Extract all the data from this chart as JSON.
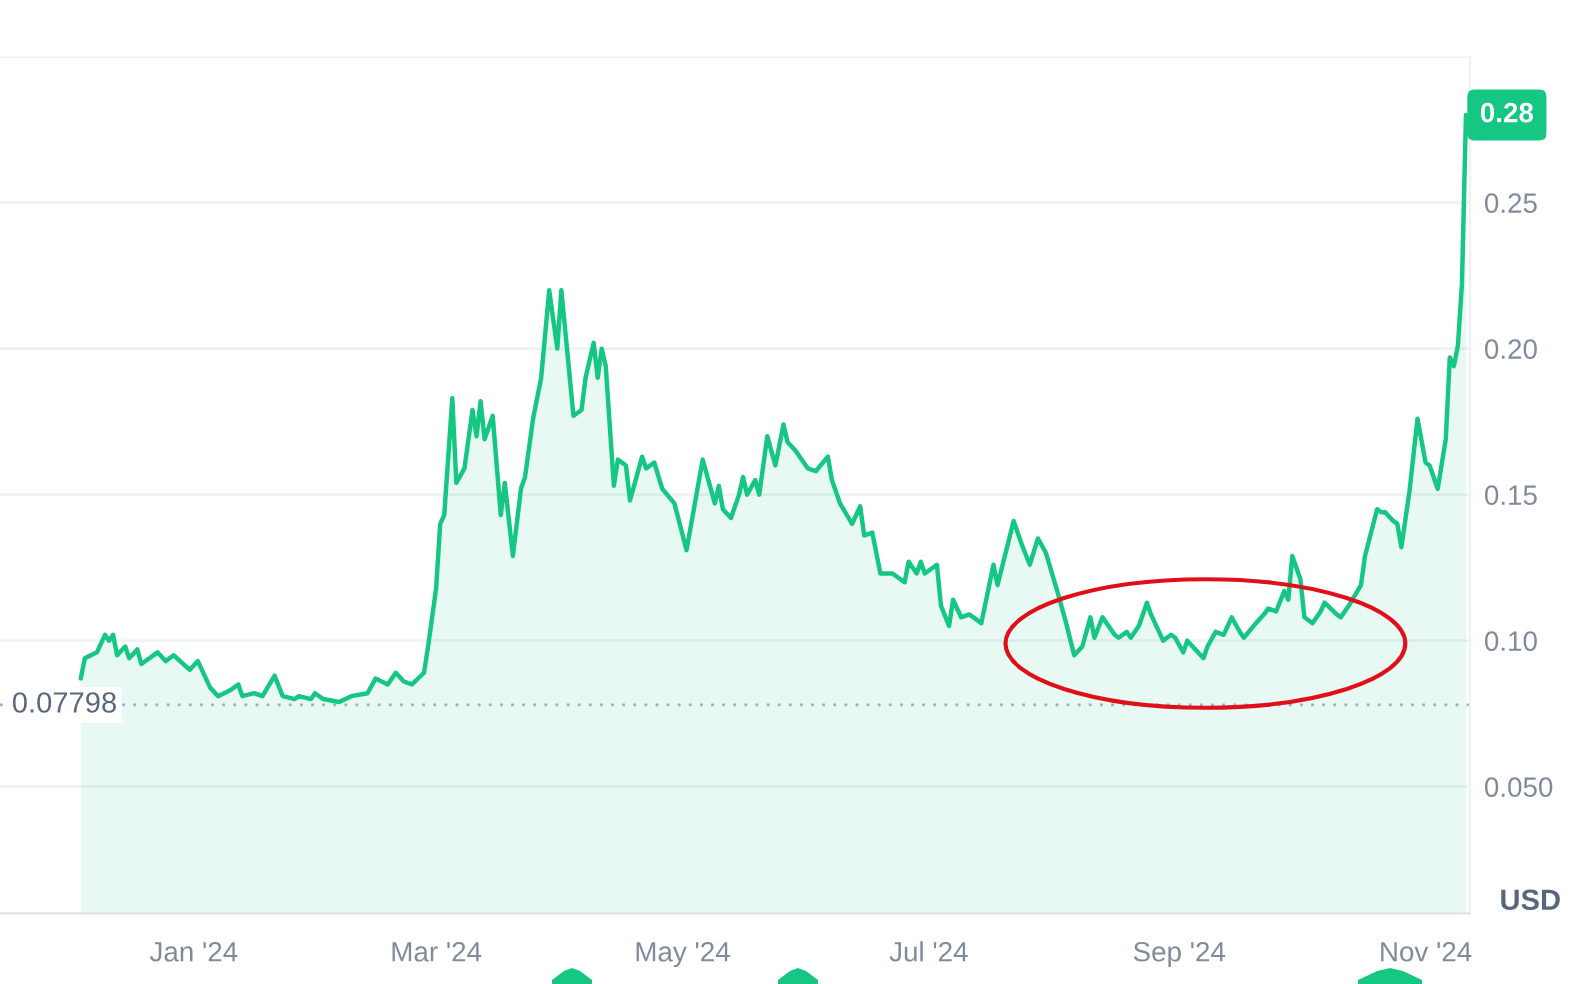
{
  "chart_data": {
    "type": "area",
    "x": [
      "2023-12-04",
      "2023-12-05",
      "2023-12-08",
      "2023-12-10",
      "2023-12-11",
      "2023-12-12",
      "2023-12-13",
      "2023-12-15",
      "2023-12-16",
      "2023-12-18",
      "2023-12-19",
      "2023-12-23",
      "2023-12-25",
      "2023-12-27",
      "2023-12-31",
      "2024-01-02",
      "2024-01-03",
      "2024-01-05",
      "2024-01-07",
      "2024-01-10",
      "2024-01-12",
      "2024-01-13",
      "2024-01-16",
      "2024-01-18",
      "2024-01-21",
      "2024-01-23",
      "2024-01-26",
      "2024-01-27",
      "2024-01-30",
      "2024-01-31",
      "2024-02-02",
      "2024-02-06",
      "2024-02-09",
      "2024-02-13",
      "2024-02-15",
      "2024-02-18",
      "2024-02-20",
      "2024-02-22",
      "2024-02-24",
      "2024-02-27",
      "2024-02-28",
      "2024-03-01",
      "2024-03-02",
      "2024-03-03",
      "2024-03-05",
      "2024-03-06",
      "2024-03-08",
      "2024-03-10",
      "2024-03-11",
      "2024-03-12",
      "2024-03-13",
      "2024-03-15",
      "2024-03-17",
      "2024-03-18",
      "2024-03-20",
      "2024-03-22",
      "2024-03-23",
      "2024-03-25",
      "2024-03-27",
      "2024-03-29",
      "2024-03-31",
      "2024-04-01",
      "2024-04-04",
      "2024-04-06",
      "2024-04-07",
      "2024-04-09",
      "2024-04-10",
      "2024-04-11",
      "2024-04-12",
      "2024-04-14",
      "2024-04-15",
      "2024-04-17",
      "2024-04-18",
      "2024-04-21",
      "2024-04-22",
      "2024-04-24",
      "2024-04-26",
      "2024-04-29",
      "2024-05-02",
      "2024-05-06",
      "2024-05-09",
      "2024-05-10",
      "2024-05-11",
      "2024-05-13",
      "2024-05-15",
      "2024-05-16",
      "2024-05-17",
      "2024-05-19",
      "2024-05-20",
      "2024-05-22",
      "2024-05-24",
      "2024-05-26",
      "2024-05-27",
      "2024-05-29",
      "2024-06-01",
      "2024-06-03",
      "2024-06-06",
      "2024-06-07",
      "2024-06-09",
      "2024-06-12",
      "2024-06-14",
      "2024-06-15",
      "2024-06-17",
      "2024-06-19",
      "2024-06-22",
      "2024-06-25",
      "2024-06-26",
      "2024-06-28",
      "2024-06-29",
      "2024-06-30",
      "2024-07-03",
      "2024-07-04",
      "2024-07-06",
      "2024-07-07",
      "2024-07-09",
      "2024-07-11",
      "2024-07-14",
      "2024-07-17",
      "2024-07-18",
      "2024-07-22",
      "2024-07-24",
      "2024-07-26",
      "2024-07-28",
      "2024-07-30",
      "2024-08-02",
      "2024-08-04",
      "2024-08-06",
      "2024-08-08",
      "2024-08-10",
      "2024-08-11",
      "2024-08-13",
      "2024-08-16",
      "2024-08-17",
      "2024-08-19",
      "2024-08-20",
      "2024-08-22",
      "2024-08-24",
      "2024-08-25",
      "2024-08-28",
      "2024-08-30",
      "2024-08-31",
      "2024-09-02",
      "2024-09-03",
      "2024-09-05",
      "2024-09-07",
      "2024-09-08",
      "2024-09-10",
      "2024-09-12",
      "2024-09-14",
      "2024-09-16",
      "2024-09-17",
      "2024-09-20",
      "2024-09-22",
      "2024-09-23",
      "2024-09-25",
      "2024-09-27",
      "2024-09-28",
      "2024-09-29",
      "2024-10-01",
      "2024-10-02",
      "2024-10-04",
      "2024-10-06",
      "2024-10-07",
      "2024-10-10",
      "2024-10-11",
      "2024-10-13",
      "2024-10-16",
      "2024-10-17",
      "2024-10-20",
      "2024-10-21",
      "2024-10-22",
      "2024-10-24",
      "2024-10-25",
      "2024-10-26",
      "2024-10-28",
      "2024-10-30",
      "2024-11-01",
      "2024-11-02",
      "2024-11-04",
      "2024-11-06",
      "2024-11-07",
      "2024-11-08",
      "2024-11-09",
      "2024-11-10",
      "2024-11-10T12:00",
      "2024-11-11"
    ],
    "series": [
      {
        "color": "#16c784",
        "values": [
          0.087,
          0.094,
          0.096,
          0.102,
          0.1,
          0.102,
          0.095,
          0.098,
          0.094,
          0.097,
          0.092,
          0.096,
          0.093,
          0.095,
          0.09,
          0.093,
          0.09,
          0.084,
          0.081,
          0.083,
          0.085,
          0.081,
          0.082,
          0.081,
          0.088,
          0.081,
          0.08,
          0.081,
          0.08,
          0.082,
          0.08,
          0.079,
          0.081,
          0.082,
          0.087,
          0.085,
          0.089,
          0.086,
          0.085,
          0.089,
          0.098,
          0.118,
          0.14,
          0.143,
          0.183,
          0.154,
          0.159,
          0.179,
          0.17,
          0.182,
          0.169,
          0.177,
          0.143,
          0.154,
          0.129,
          0.152,
          0.156,
          0.176,
          0.19,
          0.22,
          0.2,
          0.22,
          0.177,
          0.179,
          0.19,
          0.202,
          0.19,
          0.2,
          0.194,
          0.153,
          0.162,
          0.16,
          0.148,
          0.163,
          0.159,
          0.161,
          0.152,
          0.147,
          0.131,
          0.162,
          0.147,
          0.153,
          0.145,
          0.142,
          0.15,
          0.156,
          0.15,
          0.155,
          0.15,
          0.17,
          0.16,
          0.174,
          0.168,
          0.165,
          0.159,
          0.158,
          0.163,
          0.155,
          0.147,
          0.14,
          0.146,
          0.136,
          0.137,
          0.123,
          0.123,
          0.12,
          0.127,
          0.123,
          0.127,
          0.123,
          0.126,
          0.112,
          0.105,
          0.114,
          0.108,
          0.109,
          0.106,
          0.126,
          0.119,
          0.141,
          0.133,
          0.126,
          0.135,
          0.13,
          0.116,
          0.106,
          0.095,
          0.098,
          0.108,
          0.101,
          0.108,
          0.102,
          0.101,
          0.103,
          0.101,
          0.105,
          0.113,
          0.109,
          0.1,
          0.102,
          0.101,
          0.096,
          0.1,
          0.097,
          0.094,
          0.098,
          0.103,
          0.102,
          0.108,
          0.103,
          0.101,
          0.106,
          0.109,
          0.111,
          0.11,
          0.117,
          0.114,
          0.129,
          0.121,
          0.108,
          0.106,
          0.11,
          0.113,
          0.109,
          0.108,
          0.112,
          0.119,
          0.129,
          0.145,
          0.144,
          0.144,
          0.141,
          0.14,
          0.132,
          0.151,
          0.176,
          0.161,
          0.16,
          0.152,
          0.169,
          0.197,
          0.194,
          0.201,
          0.222,
          0.251,
          0.28
        ]
      }
    ],
    "xlim": [
      "2023-11-14",
      "2024-11-12"
    ],
    "xticks": [
      {
        "value": "2024-01-01",
        "label": "Jan '24"
      },
      {
        "value": "2024-03-01",
        "label": "Mar '24"
      },
      {
        "value": "2024-05-01",
        "label": "May '24"
      },
      {
        "value": "2024-07-01",
        "label": "Jul '24"
      },
      {
        "value": "2024-09-01",
        "label": "Sep '24"
      },
      {
        "value": "2024-11-01",
        "label": "Nov '24"
      }
    ],
    "ylim": [
      0.0066,
      0.3
    ],
    "yticks": [
      {
        "value": 0.05,
        "label": "0.050"
      },
      {
        "value": 0.1,
        "label": "0.10"
      },
      0.15,
      {
        "value": 0.2,
        "label": "0.20"
      },
      0.25,
      {
        "value": 0.3,
        "label": null
      }
    ],
    "ylabel": "USD",
    "grid": "y",
    "ref_lines": [
      {
        "axis": "y",
        "value": 0.07798,
        "label": "0.07798",
        "color": "#a6b0c3",
        "line_style": "dotted"
      }
    ],
    "annotations": [
      {
        "text": "0.28",
        "x": "2024-11-11",
        "y": 0.28
      }
    ]
  }
}
